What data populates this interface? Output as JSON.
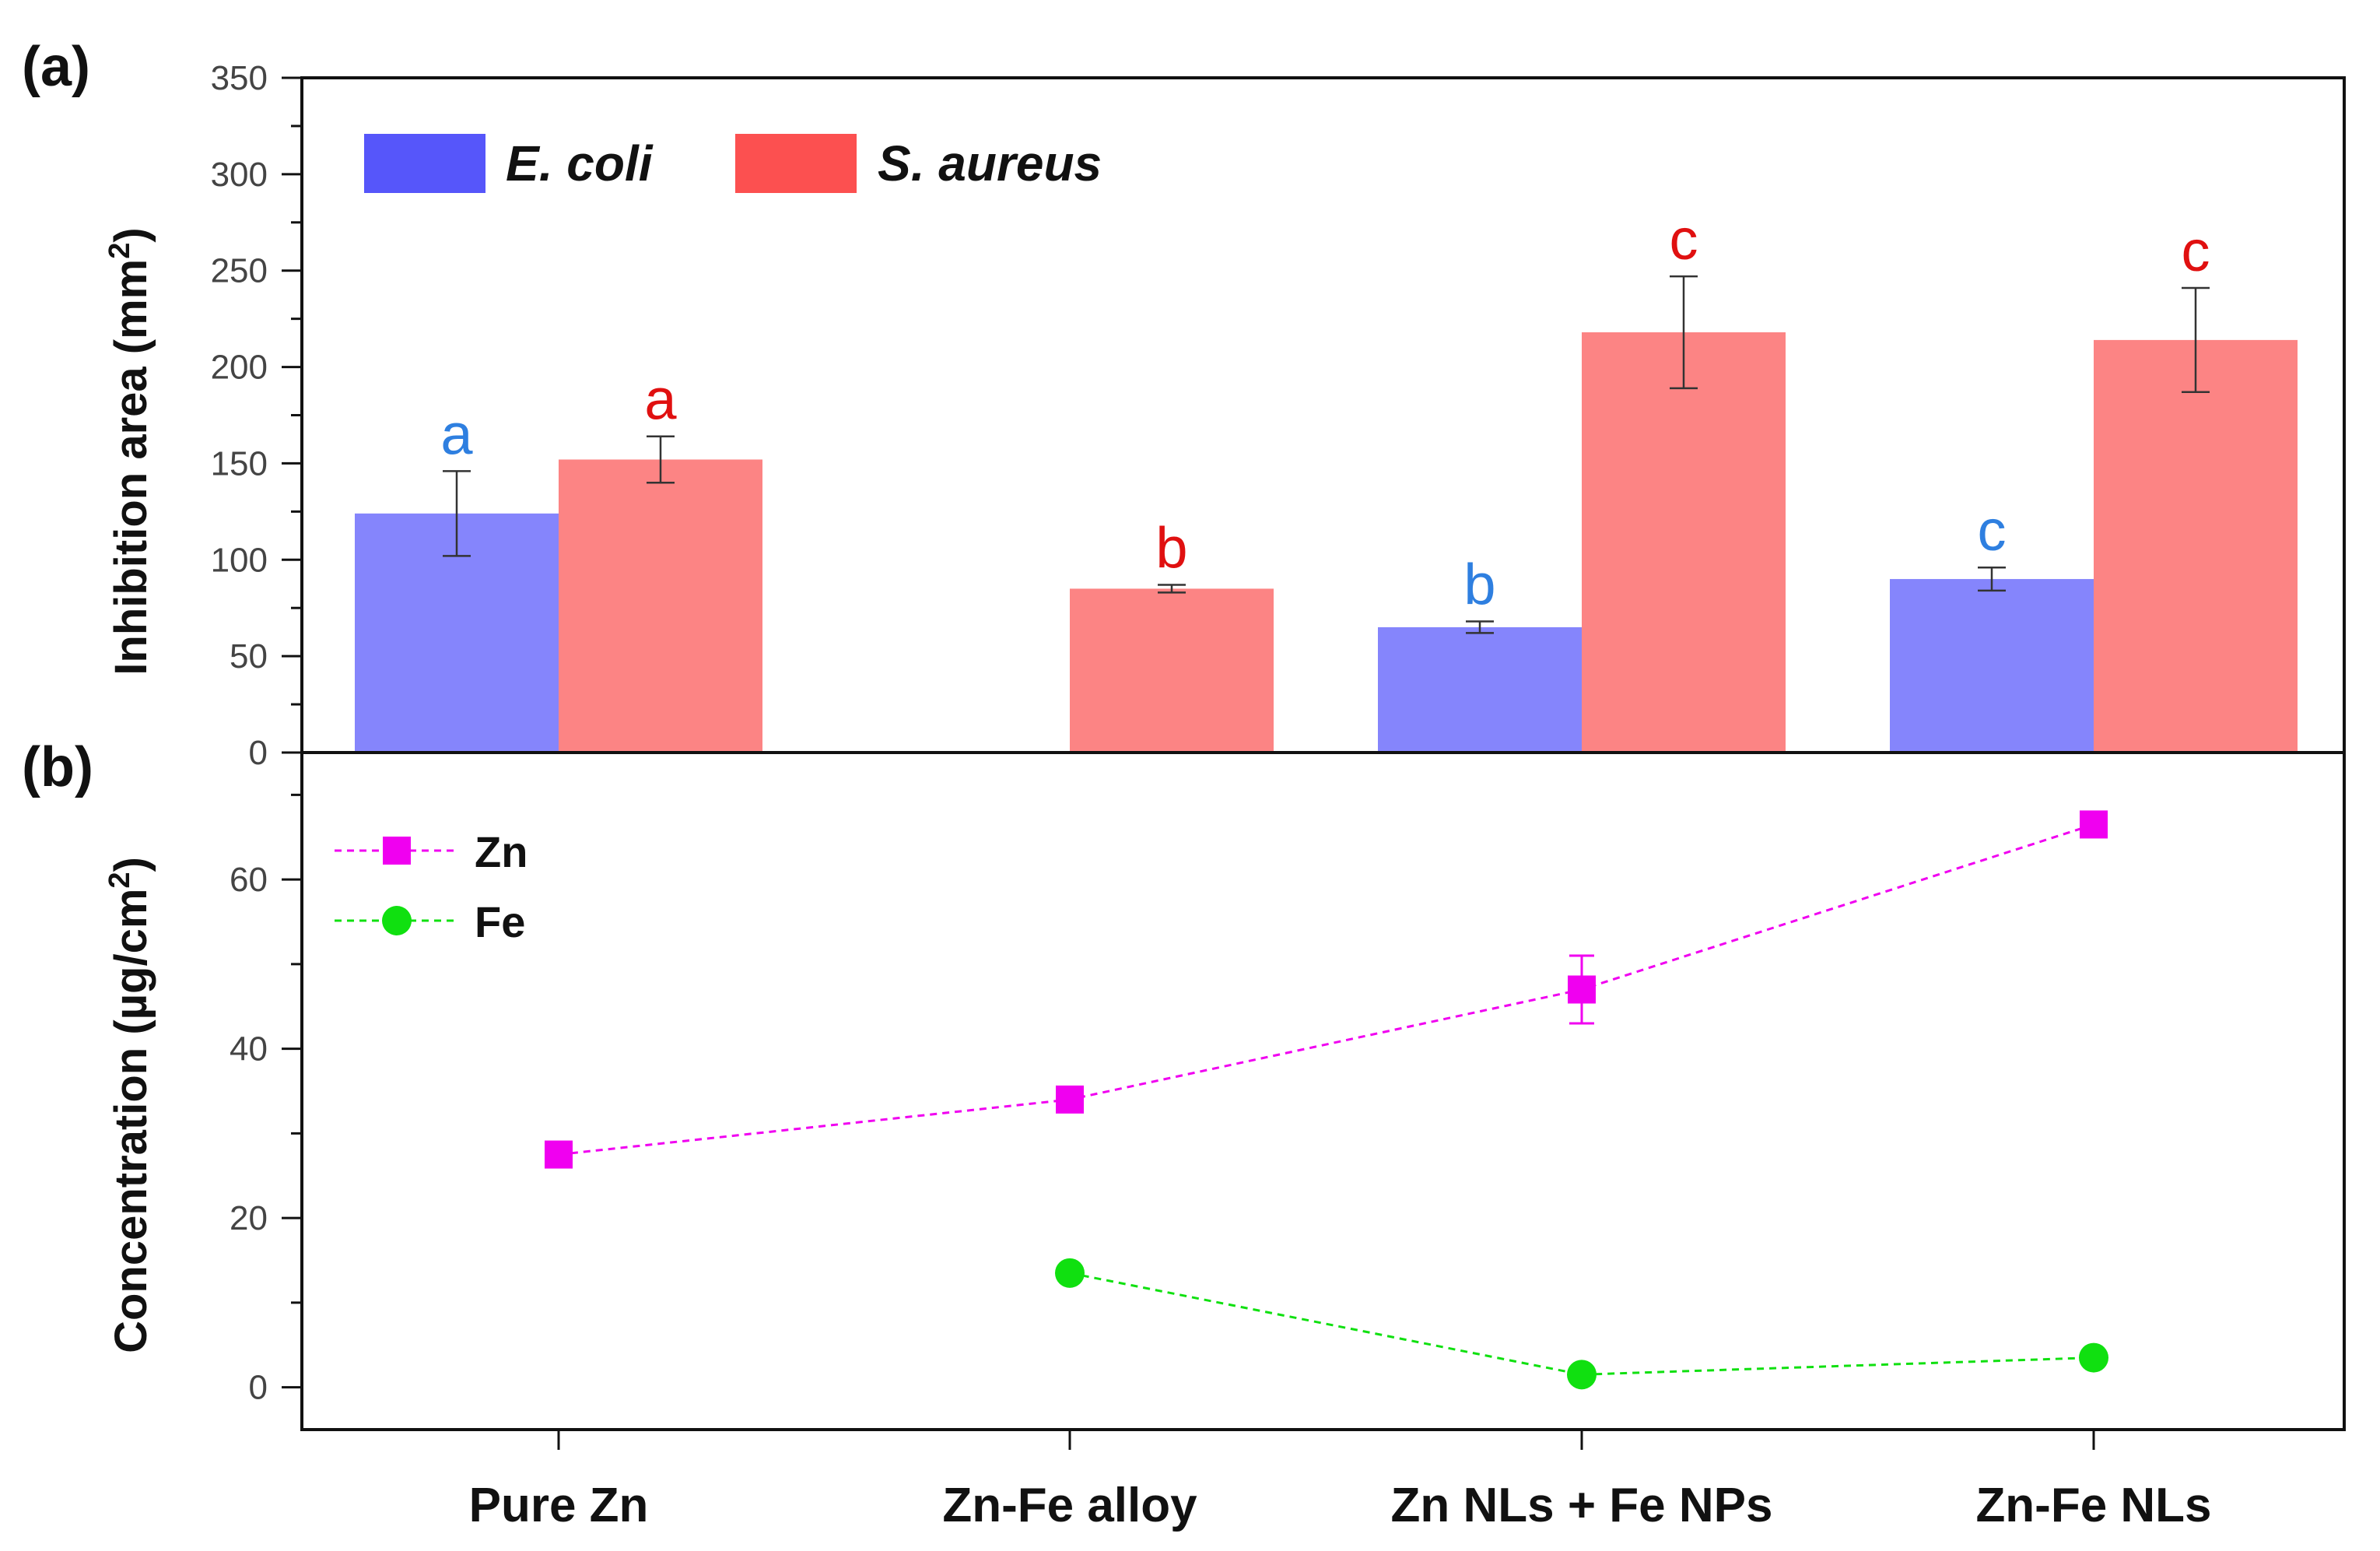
{
  "chart_data": [
    {
      "panel": "(a)",
      "type": "bar",
      "categories": [
        "Pure Zn",
        "Zn-Fe alloy",
        "Zn NLs + Fe NPs",
        "Zn-Fe NLs"
      ],
      "ylabel_main": "Inhibition area (mm",
      "ylabel_sup": "2",
      "ylabel_close": ")",
      "ylim": [
        0,
        350
      ],
      "yticks": [
        0,
        50,
        100,
        150,
        200,
        250,
        300,
        350
      ],
      "series": [
        {
          "name": "E. coli",
          "color": "#8585fc",
          "legend_color": "#5656fa",
          "letter_color": "#2e7fe0",
          "values": [
            124,
            null,
            65,
            90
          ],
          "errors": [
            22,
            null,
            3,
            6
          ],
          "letters": [
            "a",
            "",
            "b",
            "c"
          ]
        },
        {
          "name": "S. aureus",
          "color": "#fc8484",
          "legend_color": "#fc5050",
          "letter_color": "#e01010",
          "values": [
            152,
            85,
            218,
            214
          ],
          "errors": [
            12,
            2,
            29,
            27
          ],
          "letters": [
            "a",
            "b",
            "c",
            "c"
          ]
        }
      ]
    },
    {
      "panel": "(b)",
      "type": "line",
      "categories": [
        "Pure Zn",
        "Zn-Fe alloy",
        "Zn NLs + Fe NPs",
        "Zn-Fe NLs"
      ],
      "ylabel_main": "Concentration (µg/cm",
      "ylabel_sup": "2",
      "ylabel_close": ")",
      "ylim": [
        -5,
        75
      ],
      "yticks": [
        0,
        20,
        40,
        60
      ],
      "series": [
        {
          "name": "Zn",
          "color": "#f000f0",
          "marker": "square",
          "values": [
            27.5,
            34,
            47,
            66.5
          ],
          "errors": [
            0,
            0,
            4,
            0
          ]
        },
        {
          "name": "Fe",
          "color": "#10e010",
          "marker": "circle",
          "values": [
            null,
            13.5,
            1.5,
            3.5
          ],
          "errors": [
            null,
            0,
            0,
            0
          ]
        }
      ]
    }
  ]
}
